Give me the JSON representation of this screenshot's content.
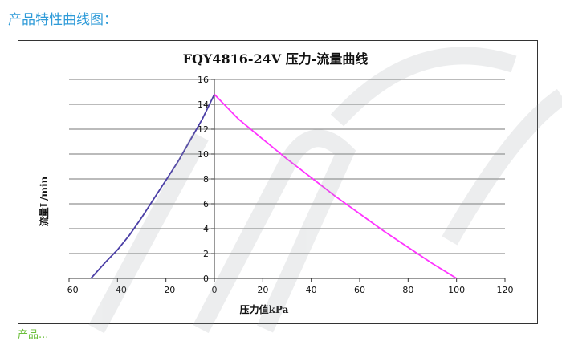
{
  "heading": "产品特性曲线图：",
  "chart_data": {
    "type": "line",
    "title": "FQY4816-24V  压力-流量曲线",
    "xlabel": "压力值kPa",
    "ylabel": "流量L/min",
    "xlim": [
      -60,
      120
    ],
    "ylim": [
      0,
      16
    ],
    "x_ticks": [
      -60,
      -40,
      -20,
      0,
      20,
      40,
      60,
      80,
      100,
      120
    ],
    "y_ticks": [
      0,
      2,
      4,
      6,
      8,
      10,
      12,
      14,
      16
    ],
    "grid": "horizontal",
    "series": [
      {
        "color": "#4b3fa6",
        "x": [
          -51,
          -45,
          -40,
          -35,
          -30,
          -25,
          -20,
          -15,
          -10,
          -5,
          0
        ],
        "y": [
          0,
          1.3,
          2.3,
          3.5,
          4.9,
          6.4,
          7.9,
          9.4,
          11.1,
          12.8,
          14.8
        ]
      },
      {
        "color": "#ff33ff",
        "x": [
          0,
          10,
          20,
          30,
          40,
          50,
          60,
          70,
          80,
          90,
          100
        ],
        "y": [
          14.8,
          12.8,
          11.2,
          9.6,
          8.1,
          6.6,
          5.2,
          3.8,
          2.5,
          1.2,
          0
        ]
      }
    ]
  },
  "footer": "产品..."
}
